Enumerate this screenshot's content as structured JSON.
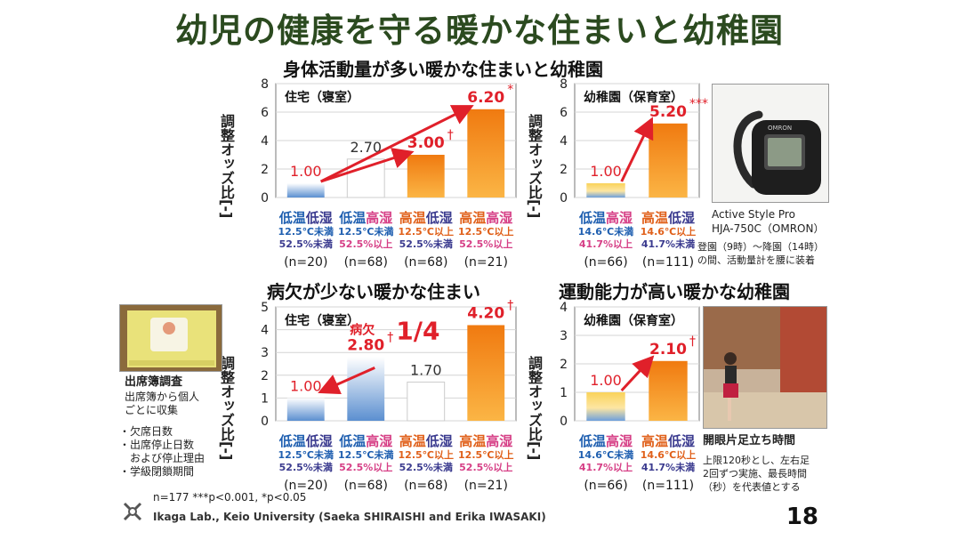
{
  "title": "幼児の健康を守る暖かな住まいと幼稚園",
  "sections": {
    "activity": "身体活動量が多い暖かな住まいと幼稚園",
    "absence": "病欠が少ない暖かな住まい",
    "motor": "運動能力が高い暖かな幼稚園"
  },
  "colors": {
    "bar_low": "#bcd3ee",
    "bar_high": "#f28a16",
    "arrow": "#e0202a",
    "label_blue": "#1f5fb0",
    "label_red": "#e0202a"
  },
  "chart_data": [
    {
      "type": "bar",
      "panel_title": "住宅（寝室）",
      "ylabel": "調整オッズ比[-]",
      "ylim": [
        0,
        8
      ],
      "yticks": [
        0,
        2,
        4,
        6,
        8
      ],
      "categories": [
        "低温低湿",
        "低温高湿",
        "高温低湿",
        "高温高湿"
      ],
      "values": [
        1.0,
        2.7,
        3.0,
        6.2
      ],
      "value_labels": [
        "1.00",
        "2.70",
        "3.00",
        "6.20"
      ],
      "marks": [
        "",
        "",
        "†",
        "*"
      ],
      "temps": [
        "12.5℃未満",
        "12.5℃未満",
        "12.5℃以上",
        "12.5℃以上"
      ],
      "hums": [
        "52.5%未満",
        "52.5%以上",
        "52.5%未満",
        "52.5%以上"
      ],
      "ns": [
        "(n=20)",
        "(n=68)",
        "(n=68)",
        "(n=21)"
      ],
      "fills": [
        "cool",
        "white",
        "warm",
        "warm"
      ]
    },
    {
      "type": "bar",
      "panel_title": "幼稚園（保育室）",
      "ylabel": "調整オッズ比[-]",
      "ylim": [
        0,
        8
      ],
      "yticks": [
        0,
        2,
        4,
        6,
        8
      ],
      "categories": [
        "低温高湿",
        "高温低湿"
      ],
      "values": [
        1.0,
        5.2
      ],
      "value_labels": [
        "1.00",
        "5.20"
      ],
      "marks": [
        "",
        "***"
      ],
      "temps": [
        "14.6℃未満",
        "14.6℃以上"
      ],
      "hums": [
        "41.7%以上",
        "41.7%未満"
      ],
      "ns": [
        "(n=66)",
        "(n=111)"
      ],
      "fills": [
        "gradient",
        "warm"
      ]
    },
    {
      "type": "bar",
      "panel_title": "住宅（寝室）",
      "ylabel": "調整オッズ比[-]",
      "ylim": [
        0,
        5
      ],
      "yticks": [
        0,
        1,
        2,
        3,
        4,
        5
      ],
      "categories": [
        "低温低湿",
        "低温高湿",
        "高温低湿",
        "高温高湿"
      ],
      "values": [
        1.0,
        2.8,
        1.7,
        4.2
      ],
      "value_labels": [
        "1.00",
        "2.80",
        "1.70",
        "4.20"
      ],
      "marks": [
        "",
        "†",
        "",
        "†"
      ],
      "temps": [
        "12.5℃未満",
        "12.5℃未満",
        "12.5℃以上",
        "12.5℃以上"
      ],
      "hums": [
        "52.5%未満",
        "52.5%以上",
        "52.5%未満",
        "52.5%以上"
      ],
      "ns": [
        "(n=20)",
        "(n=68)",
        "(n=68)",
        "(n=21)"
      ],
      "fills": [
        "cool",
        "cool",
        "white",
        "warm"
      ],
      "annotation": {
        "prefix": "病欠",
        "big": "1/4"
      }
    },
    {
      "type": "bar",
      "panel_title": "幼稚園（保育室）",
      "ylabel": "調整オッズ比[-]",
      "ylim": [
        0,
        4
      ],
      "yticks": [
        0,
        1,
        2,
        3,
        4
      ],
      "categories": [
        "低温高湿",
        "高温低湿"
      ],
      "values": [
        1.0,
        2.1
      ],
      "value_labels": [
        "1.00",
        "2.10"
      ],
      "marks": [
        "",
        "†"
      ],
      "temps": [
        "14.6℃未満",
        "14.6℃以上"
      ],
      "hums": [
        "41.7%以上",
        "41.7%未満"
      ],
      "ns": [
        "(n=66)",
        "(n=111)"
      ],
      "fills": [
        "gradient",
        "warm"
      ]
    }
  ],
  "device": {
    "name": "Active Style Pro",
    "model": "HJA-750C（OMRON）",
    "desc_line1": "登園（9時）～降園（14時）",
    "desc_line2": "の間、活動量計を腰に装着"
  },
  "attendance": {
    "heading": "出席簿調査",
    "desc_line1": "出席簿から個人",
    "desc_line2": "ごとに収集",
    "items": [
      "・欠席日数",
      "・出席停止日数",
      "　および停止理由",
      "・学級閉鎖期間"
    ]
  },
  "balance": {
    "heading": "開眼片足立ち時間",
    "desc_line1": "上限120秒とし、左右足",
    "desc_line2": "2回ずつ実施、最長時間",
    "desc_line3": "（秒）を代表値とする"
  },
  "footer": {
    "stats": "n=177 ***p<0.001, *p<0.05",
    "lab": "Ikaga Lab., Keio University   (Saeka SHIRAISHI and Erika IWASAKI)",
    "page": "18"
  }
}
